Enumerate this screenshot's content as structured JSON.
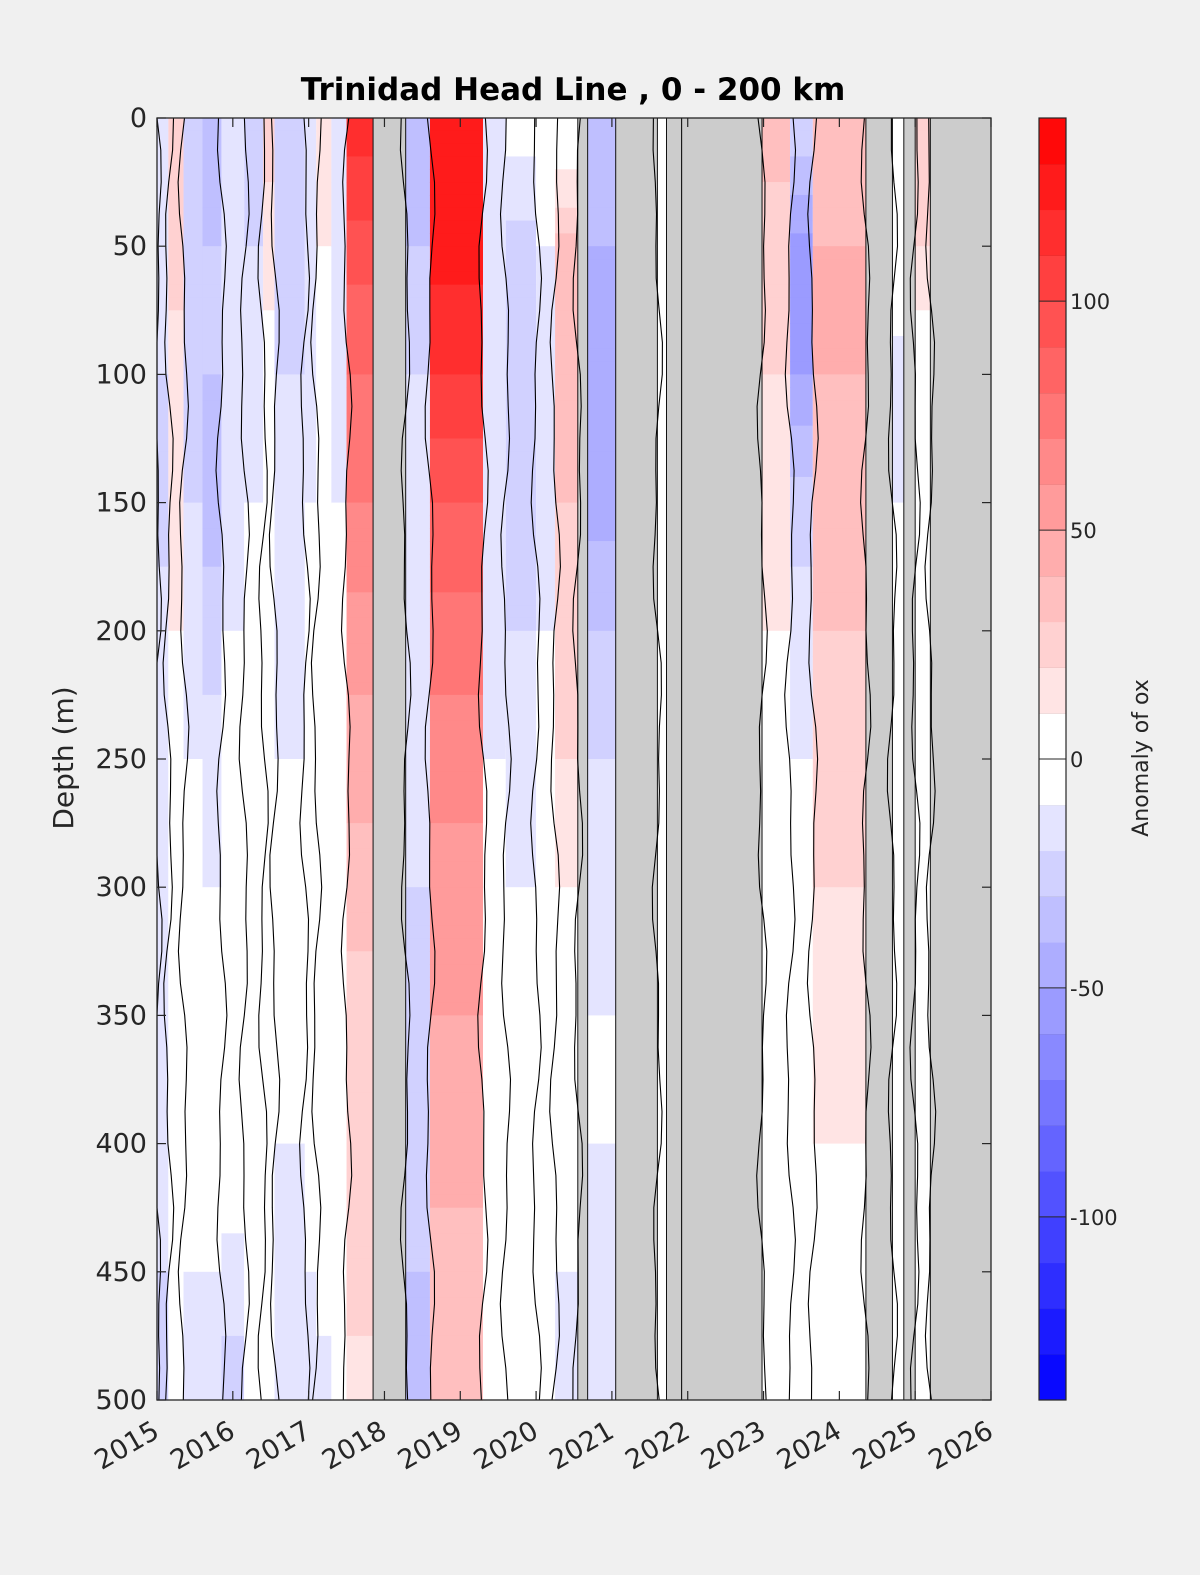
{
  "chart_data": {
    "type": "heatmap",
    "title": "Trinidad Head Line , 0 - 200 km",
    "ylabel": "Depth (m)",
    "xlabel": "",
    "xlim": [
      2015,
      2026
    ],
    "ylim": [
      0,
      500
    ],
    "y_reversed": true,
    "x_ticks": [
      "2015",
      "2016",
      "2017",
      "2018",
      "2019",
      "2020",
      "2021",
      "2022",
      "2023",
      "2024",
      "2025",
      "2026"
    ],
    "y_ticks": [
      "0",
      "50",
      "100",
      "150",
      "200",
      "250",
      "300",
      "350",
      "400",
      "450",
      "500"
    ],
    "colorbar": {
      "label": "Anomaly of ox",
      "range": [
        -140,
        140
      ],
      "ticks": [
        "-100",
        "-50",
        "0",
        "50",
        "100"
      ],
      "colormap": "blue-white-red"
    },
    "missing_data_color": "#cccccc",
    "missing_periods": [
      [
        2017.85,
        2018.28
      ],
      [
        2020.55,
        2020.68
      ],
      [
        2021.05,
        2021.6
      ],
      [
        2021.72,
        2021.92
      ],
      [
        2021.92,
        2022.98
      ],
      [
        2024.35,
        2024.7
      ],
      [
        2024.85,
        2025.0
      ],
      [
        2025.2,
        2026.0
      ]
    ],
    "columns": [
      {
        "x0": 2015.0,
        "x1": 2015.15,
        "values": [
          -15,
          -15,
          -20,
          -22,
          -18,
          -18,
          -15,
          -12,
          -15,
          -20,
          -25
        ]
      },
      {
        "x0": 2015.15,
        "x1": 2015.35,
        "values": [
          25,
          22,
          18,
          15,
          10,
          5,
          0,
          0,
          0,
          -5,
          -8
        ]
      },
      {
        "x0": 2015.35,
        "x1": 2015.6,
        "values": [
          -20,
          -25,
          -25,
          -20,
          -15,
          -10,
          -8,
          -5,
          -5,
          -10,
          -15
        ]
      },
      {
        "x0": 2015.6,
        "x1": 2015.85,
        "values": [
          -35,
          -30,
          -30,
          -35,
          -25,
          -15,
          -10,
          -5,
          -5,
          -10,
          -15
        ]
      },
      {
        "x0": 2015.85,
        "x1": 2016.15,
        "values": [
          -20,
          -20,
          -15,
          -15,
          -10,
          -5,
          0,
          0,
          0,
          -15,
          -25
        ]
      },
      {
        "x0": 2016.15,
        "x1": 2016.4,
        "values": [
          -30,
          -20,
          -15,
          -10,
          -5,
          0,
          0,
          0,
          0,
          -5,
          -10
        ]
      },
      {
        "x0": 2016.4,
        "x1": 2016.55,
        "values": [
          25,
          15,
          5,
          0,
          0,
          0,
          0,
          0,
          0,
          -5,
          -10
        ]
      },
      {
        "x0": 2016.55,
        "x1": 2016.95,
        "values": [
          -30,
          -25,
          -20,
          -20,
          -15,
          -10,
          -5,
          -5,
          -10,
          -15,
          -20
        ]
      },
      {
        "x0": 2016.95,
        "x1": 2017.1,
        "values": [
          -15,
          -15,
          -12,
          -10,
          -8,
          -5,
          0,
          0,
          0,
          -10,
          -20
        ]
      },
      {
        "x0": 2017.1,
        "x1": 2017.3,
        "values": [
          15,
          10,
          5,
          0,
          0,
          0,
          0,
          0,
          0,
          -5,
          -15
        ]
      },
      {
        "x0": 2017.3,
        "x1": 2017.5,
        "values": [
          -20,
          -20,
          -15,
          -10,
          -10,
          -8,
          -5,
          -5,
          -5,
          -10,
          -10
        ]
      },
      {
        "x0": 2017.5,
        "x1": 2017.85,
        "values": [
          115,
          95,
          80,
          70,
          55,
          45,
          35,
          25,
          20,
          30,
          10
        ]
      },
      {
        "x0": 2018.28,
        "x1": 2018.6,
        "values": [
          -40,
          -30,
          -20,
          -15,
          -15,
          -15,
          -20,
          -25,
          -25,
          -30,
          -35
        ]
      },
      {
        "x0": 2018.6,
        "x1": 2019.3,
        "values": [
          130,
          125,
          110,
          90,
          75,
          65,
          55,
          50,
          45,
          35,
          30
        ]
      },
      {
        "x0": 2019.3,
        "x1": 2019.6,
        "values": [
          -10,
          -15,
          -20,
          -20,
          -15,
          -10,
          -10,
          -10,
          -8,
          -5,
          -10
        ]
      },
      {
        "x0": 2019.6,
        "x1": 2020.0,
        "values": [
          -5,
          -25,
          -30,
          -25,
          -20,
          -15,
          -10,
          -8,
          -5,
          0,
          0
        ]
      },
      {
        "x0": 2020.0,
        "x1": 2020.25,
        "values": [
          0,
          -10,
          -15,
          -15,
          -10,
          -8,
          -5,
          -5,
          0,
          0,
          0
        ]
      },
      {
        "x0": 2020.25,
        "x1": 2020.55,
        "values": [
          -10,
          35,
          40,
          30,
          25,
          20,
          10,
          0,
          -5,
          -10,
          -15
        ]
      },
      {
        "x0": 2020.68,
        "x1": 2021.05,
        "values": [
          -35,
          -40,
          -50,
          -45,
          -30,
          -20,
          -15,
          -10,
          -10,
          -15,
          -20
        ]
      },
      {
        "x0": 2021.6,
        "x1": 2021.72,
        "values": [
          0,
          0,
          0,
          0,
          0,
          0,
          0,
          0,
          0,
          0,
          0
        ]
      },
      {
        "x0": 2022.98,
        "x1": 2023.35,
        "values": [
          35,
          25,
          20,
          15,
          10,
          5,
          0,
          0,
          0,
          0,
          0
        ]
      },
      {
        "x0": 2023.35,
        "x1": 2023.65,
        "values": [
          -20,
          -55,
          -50,
          -25,
          -15,
          -10,
          -5,
          0,
          0,
          0,
          0
        ]
      },
      {
        "x0": 2023.65,
        "x1": 2024.35,
        "values": [
          35,
          40,
          40,
          35,
          30,
          25,
          20,
          15,
          10,
          0,
          0
        ]
      },
      {
        "x0": 2024.7,
        "x1": 2024.85,
        "values": [
          10,
          0,
          -15,
          -10,
          -5,
          0,
          0,
          0,
          0,
          -5,
          -10
        ]
      },
      {
        "x0": 2025.0,
        "x1": 2025.2,
        "values": [
          30,
          20,
          0,
          0,
          0,
          0,
          0,
          0,
          0,
          -5,
          0
        ]
      }
    ],
    "column_depths": [
      0,
      50,
      100,
      150,
      200,
      250,
      300,
      350,
      400,
      450,
      500
    ],
    "zero_contours": [
      2015.0,
      2015.15,
      2015.35,
      2015.85,
      2016.15,
      2016.4,
      2016.55,
      2016.95,
      2017.1,
      2017.5,
      2018.28,
      2018.6,
      2019.3,
      2019.6,
      2020.0,
      2020.25,
      2020.55,
      2021.6,
      2022.98,
      2023.35,
      2023.65,
      2024.35,
      2024.7,
      2025.0,
      2025.2
    ]
  }
}
